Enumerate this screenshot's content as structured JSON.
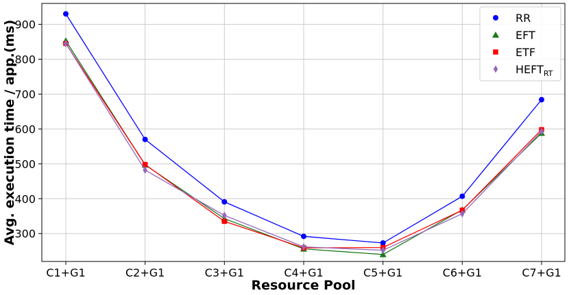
{
  "chart_data": {
    "type": "line",
    "xlabel": "Resource Pool",
    "ylabel": "Avg. execution time / app.(ms)",
    "categories": [
      "C1+G1",
      "C2+G1",
      "C3+G1",
      "C4+G1",
      "C5+G1",
      "C6+G1",
      "C7+G1"
    ],
    "ylim": [
      220,
      960
    ],
    "yticks": [
      300,
      400,
      500,
      600,
      700,
      800,
      900
    ],
    "grid": true,
    "legend_position": "top-right",
    "series": [
      {
        "name": "RR",
        "name_sub": "",
        "marker": "circle",
        "color": "#0000ff",
        "values": [
          930,
          570,
          391,
          292,
          273,
          407,
          684
        ]
      },
      {
        "name": "EFT",
        "name_sub": "",
        "marker": "triangle",
        "color": "#1a7a1a",
        "values": [
          853,
          497,
          343,
          256,
          240,
          368,
          588
        ]
      },
      {
        "name": "ETF",
        "name_sub": "",
        "marker": "square",
        "color": "#ff0000",
        "values": [
          845,
          498,
          335,
          259,
          260,
          367,
          598
        ]
      },
      {
        "name": "HEFT",
        "name_sub": "RT",
        "marker": "diamond",
        "color": "#9467bd",
        "values": [
          845,
          482,
          352,
          262,
          252,
          357,
          593
        ]
      }
    ]
  }
}
